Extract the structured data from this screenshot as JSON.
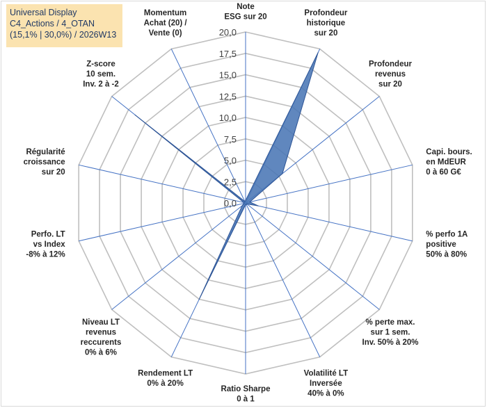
{
  "info_box": {
    "line1": "Universal Display",
    "line2": "C4_Actions / 4_OTAN",
    "line3": "(15,1% | 30,0%) / 2026W13"
  },
  "colors": {
    "fill": "#4a76b5",
    "stroke": "#2e5596",
    "grid": "#bfbfbf",
    "spoke": "#4472c4",
    "info_bg": "#fbe3b0",
    "info_text": "#1f3864"
  },
  "chart_data": {
    "type": "radar",
    "scale": {
      "min": 0,
      "max": 20,
      "step": 2.5
    },
    "tick_labels": [
      "0,0",
      "2,5",
      "5,0",
      "7,5",
      "10,0",
      "12,5",
      "15,0",
      "17,5",
      "20,0"
    ],
    "axes": [
      {
        "label": [
          "Note",
          "ESG sur 20"
        ],
        "value": 0.3
      },
      {
        "label": [
          "Profondeur",
          "historique",
          "sur 20"
        ],
        "value": 19.5
      },
      {
        "label": [
          "Profondeur",
          "revenus",
          "sur 20"
        ],
        "value": 5.5
      },
      {
        "label": [
          "Capi. bours.",
          "en MdEUR",
          "0 à 60 G€"
        ],
        "value": 0.5
      },
      {
        "label": [
          "% perfo 1A",
          "positive",
          "50% à 80%"
        ],
        "value": 1.5
      },
      {
        "label": [
          "% perte max.",
          "sur 1 sem.",
          "Inv. 50% à 20%"
        ],
        "value": 0.2
      },
      {
        "label": [
          "Volatilité LT",
          "Inversée",
          "40% à 0%"
        ],
        "value": 0.2
      },
      {
        "label": [
          "Ratio Sharpe",
          "0 à 1"
        ],
        "value": 0.2
      },
      {
        "label": [
          "Rendement LT",
          "0% à 20%"
        ],
        "value": 12.5
      },
      {
        "label": [
          "Niveau LT",
          "revenus",
          "reccurents",
          "0% à 6%"
        ],
        "value": 0.5
      },
      {
        "label": [
          "Perfo. LT",
          "vs Index",
          "-8% à 12%"
        ],
        "value": 0.2
      },
      {
        "label": [
          "Régularité",
          "croissance",
          "sur 20"
        ],
        "value": 0.2
      },
      {
        "label": [
          "Z-score",
          "10 sem.",
          "Inv. 2 à -2"
        ],
        "value": 16.5
      },
      {
        "label": [
          "Momentum",
          "Achat (20) /",
          "Vente (0)"
        ],
        "value": 0.2
      }
    ]
  }
}
